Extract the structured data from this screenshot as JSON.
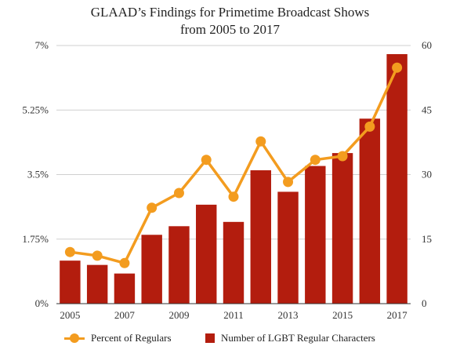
{
  "chart_data": {
    "type": "bar",
    "title": "GLAAD’s Findings for Primetime Broadcast Shows",
    "subtitle": "from 2005 to 2017",
    "categories": [
      "2005",
      "2006",
      "2007",
      "2008",
      "2009",
      "2010",
      "2011",
      "2012",
      "2013",
      "2014",
      "2015",
      "2016",
      "2017"
    ],
    "x_tick_labels": [
      "2005",
      "2007",
      "2009",
      "2011",
      "2013",
      "2015",
      "2017"
    ],
    "left_axis": {
      "ticks": [
        "0%",
        "1.75%",
        "3.5%",
        "5.25%",
        "7%"
      ],
      "min": 0,
      "max": 7
    },
    "right_axis": {
      "ticks": [
        "0",
        "15",
        "30",
        "45",
        "60"
      ],
      "min": 0,
      "max": 60
    },
    "series": [
      {
        "name": "Number of LGBT Regular Characters",
        "type": "bar",
        "axis": "right",
        "color": "#b31d0e",
        "values": [
          10,
          9,
          7,
          16,
          18,
          23,
          19,
          31,
          26,
          32,
          35,
          43,
          58
        ]
      },
      {
        "name": "Percent of Regulars",
        "type": "line",
        "axis": "left",
        "color": "#f39c1f",
        "values": [
          1.4,
          1.3,
          1.1,
          2.6,
          3.0,
          3.9,
          2.9,
          4.4,
          3.3,
          3.9,
          4.0,
          4.8,
          6.4
        ]
      }
    ],
    "grid": true,
    "legend_position": "bottom"
  }
}
